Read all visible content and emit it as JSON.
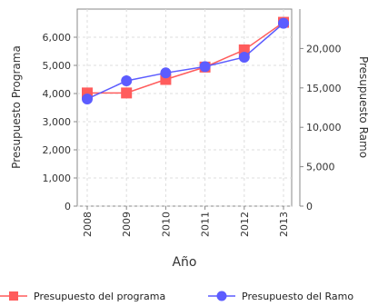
{
  "chart_data": {
    "type": "line",
    "xlabel": "Año",
    "ylabel_left": "Presupuesto Programa",
    "ylabel_right": "Presupuesto Ramo",
    "categories": [
      "2008",
      "2009",
      "2010",
      "2011",
      "2012",
      "2013"
    ],
    "ylim_left": [
      0,
      7000
    ],
    "yticks_left": [
      0,
      1000,
      2000,
      3000,
      4000,
      5000,
      6000
    ],
    "ytick_labels_left": [
      "0",
      "1,000",
      "2,000",
      "3,000",
      "4,000",
      "5,000",
      "6,000"
    ],
    "ylim_right": [
      0,
      25000
    ],
    "yticks_right": [
      0,
      5000,
      10000,
      15000,
      20000
    ],
    "ytick_labels_right": [
      "0",
      "5,000",
      "10,000",
      "15,000",
      "20,000"
    ],
    "grid": true,
    "legend_position": "bottom",
    "series": [
      {
        "name": "Presupuesto del programa",
        "axis": "left",
        "color": "#ff5c5c",
        "marker": "square",
        "values": [
          4020,
          4020,
          4500,
          4940,
          5550,
          6530
        ]
      },
      {
        "name": "Presupuesto del Ramo",
        "axis": "right",
        "color": "#5c5cff",
        "marker": "circle",
        "values": [
          13600,
          15900,
          16900,
          17700,
          18900,
          23200
        ]
      }
    ]
  }
}
